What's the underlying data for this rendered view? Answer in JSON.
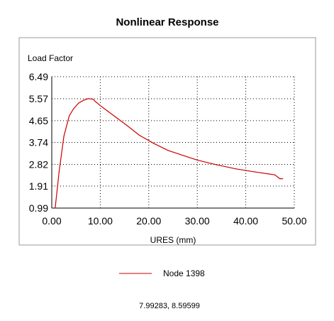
{
  "chart_data": {
    "type": "line",
    "title": "Nonlinear Response",
    "ylabel": "Load Factor",
    "xlabel": "URES (mm)",
    "xlim": [
      0,
      50
    ],
    "ylim": [
      0.99,
      6.49
    ],
    "x_ticks": [
      "0.00",
      "10.00",
      "20.00",
      "30.00",
      "40.00",
      "50.00"
    ],
    "y_ticks": [
      "0.99",
      "1.91",
      "2.82",
      "3.74",
      "4.65",
      "5.57",
      "6.49"
    ],
    "grid": true,
    "legend_position": "bottom",
    "series": [
      {
        "name": "Node 1398",
        "color": "#cc0000",
        "x": [
          0.7,
          1.5,
          2.5,
          3.6,
          4.5,
          5.5,
          6.5,
          7.5,
          8.5,
          9.0,
          10.0,
          11.5,
          13.5,
          15.5,
          18.0,
          21.0,
          24.0,
          27.0,
          30.0,
          34.0,
          38.0,
          42.0,
          46.0,
          47.0,
          47.6
        ],
        "y": [
          0.99,
          2.5,
          4.0,
          4.85,
          5.15,
          5.38,
          5.5,
          5.57,
          5.55,
          5.45,
          5.28,
          5.05,
          4.75,
          4.45,
          4.05,
          3.7,
          3.4,
          3.2,
          3.0,
          2.8,
          2.63,
          2.5,
          2.38,
          2.22,
          2.22
        ]
      }
    ]
  },
  "readout": "7.99283, 8.59599"
}
